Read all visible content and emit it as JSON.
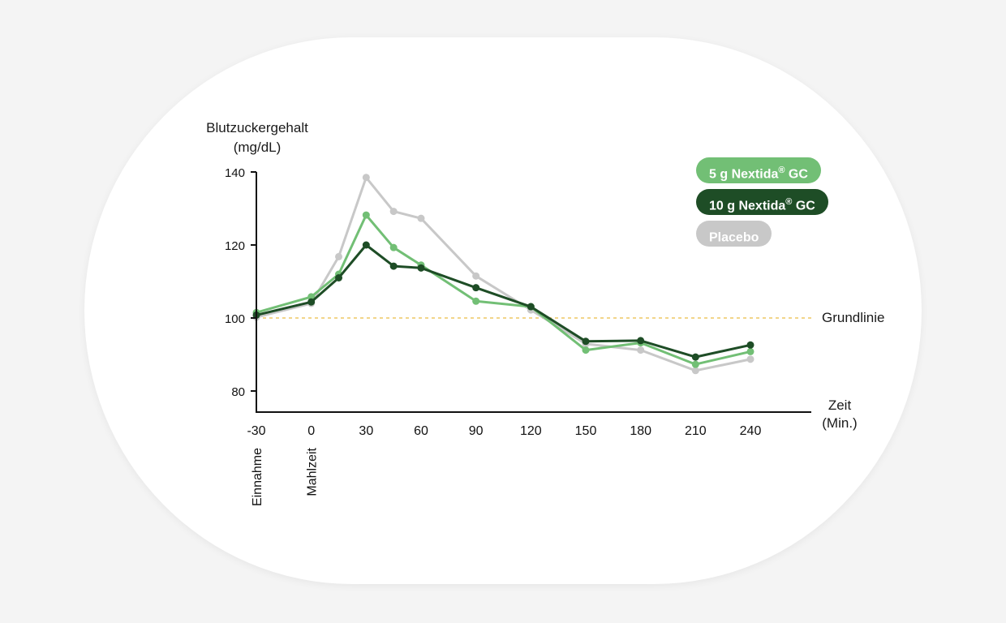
{
  "chart_data": {
    "type": "line",
    "y_label_line1": "Blutzuckergehalt",
    "y_label_line2": "(mg/dL)",
    "x_label_line1": "Zeit",
    "x_label_line2": "(Min.)",
    "ylim": [
      75,
      142
    ],
    "yticks": [
      80,
      100,
      120,
      140
    ],
    "xlim": [
      -30,
      240
    ],
    "xticks": [
      -30,
      0,
      30,
      60,
      90,
      120,
      150,
      180,
      210,
      240
    ],
    "x_annotations": [
      {
        "x": -30,
        "label": "Einnahme"
      },
      {
        "x": 0,
        "label": "Mahlzeit"
      }
    ],
    "baseline": {
      "value": 100,
      "label": "Grundlinie",
      "color": "#f2d58a"
    },
    "grid": false,
    "legend_position": "top-right",
    "series": [
      {
        "name_main": "5 g Nextida",
        "name_sup": "®",
        "name_suffix": " GC",
        "color": "#72bf75",
        "x": [
          -30,
          0,
          15,
          30,
          45,
          60,
          90,
          120,
          150,
          180,
          210,
          240
        ],
        "values": [
          101.5,
          105.8,
          112,
          128.2,
          119.3,
          114.5,
          104.6,
          103.1,
          91.2,
          93.2,
          87.3,
          90.8
        ]
      },
      {
        "name_main": "10 g Nextida",
        "name_sup": "®",
        "name_suffix": " GC",
        "color": "#1e4d26",
        "x": [
          -30,
          0,
          15,
          30,
          45,
          60,
          90,
          120,
          150,
          180,
          210,
          240
        ],
        "values": [
          100.8,
          104.4,
          111,
          120,
          114.2,
          113.7,
          108.3,
          103.1,
          93.6,
          93.8,
          89.3,
          92.6
        ]
      },
      {
        "name_main": "Placebo",
        "name_sup": "",
        "name_suffix": "",
        "color": "#c8c8c8",
        "x": [
          -30,
          0,
          15,
          30,
          45,
          60,
          90,
          120,
          150,
          180,
          210,
          240
        ],
        "values": [
          100.2,
          104,
          116.8,
          138.5,
          129.2,
          127.3,
          111.5,
          102.2,
          92.9,
          91.2,
          85.6,
          88.7
        ]
      }
    ]
  }
}
